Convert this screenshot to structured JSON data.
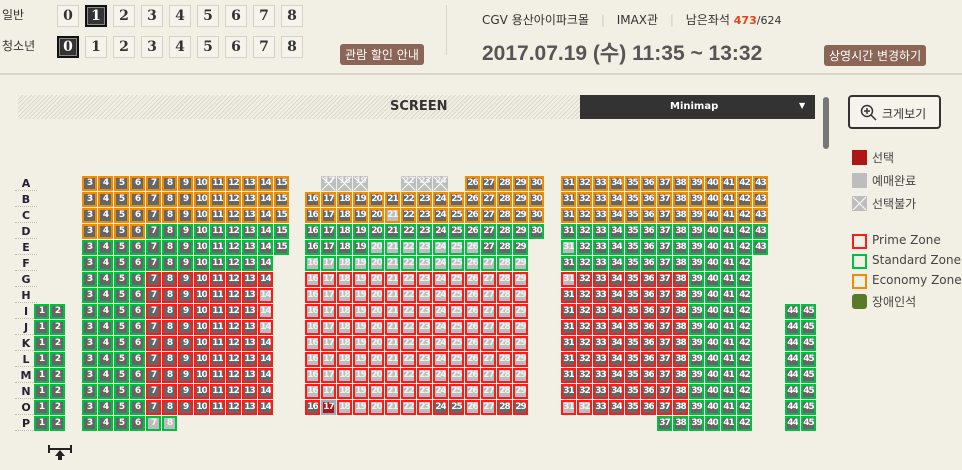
{
  "ticket": {
    "general_label": "일반",
    "youth_label": "청소년",
    "counts": [
      "0",
      "1",
      "2",
      "3",
      "4",
      "5",
      "6",
      "7",
      "8"
    ],
    "general_selected": 1,
    "youth_selected": 0,
    "discount_button": "관람 할인 안내"
  },
  "info": {
    "theater": "CGV 용산아이파크몰",
    "hall": "IMAX관",
    "remaining_label": "남은좌석",
    "remaining": "473",
    "total": "/624",
    "datetime": "2017.07.19 (수) 11:35 ~ 13:32",
    "change_time_button": "상영시간 변경하기"
  },
  "screen_label": "SCREEN",
  "minimap": {
    "label": "Minimap",
    "arrow": "▼"
  },
  "zoom_button": "크게보기",
  "legend": {
    "selected": "선택",
    "sold": "예매완료",
    "blocked": "선택불가",
    "prime": "Prime Zone",
    "standard": "Standard Zone",
    "economy": "Economy Zone",
    "disabled": "장애인석"
  },
  "colors": {
    "prime": "#ff1a1a",
    "standard": "#00c040",
    "economy": "#f08c00",
    "disabled": "#5a7a2a",
    "selected": "#b01515",
    "sold": "#bdbdbd",
    "available": "#666666"
  },
  "rows": [
    {
      "label": "A",
      "zones": [
        [
          3,
          15,
          "E"
        ],
        [
          17,
          19,
          "N"
        ],
        [
          22,
          24,
          "N"
        ],
        [
          26,
          43,
          "E"
        ]
      ],
      "blocked": [
        17,
        18,
        19,
        22,
        23,
        24
      ],
      "sold": [],
      "selected": []
    },
    {
      "label": "B",
      "zones": [
        [
          3,
          43,
          "E"
        ]
      ],
      "blocked": [],
      "sold": [],
      "selected": []
    },
    {
      "label": "C",
      "zones": [
        [
          3,
          43,
          "E"
        ]
      ],
      "blocked": [],
      "sold": [
        21
      ],
      "selected": []
    },
    {
      "label": "D",
      "zones": [
        [
          3,
          6,
          "E"
        ],
        [
          7,
          43,
          "S"
        ]
      ],
      "blocked": [],
      "sold": [],
      "selected": []
    },
    {
      "label": "E",
      "zones": [
        [
          3,
          29,
          "S"
        ],
        [
          31,
          43,
          "S"
        ]
      ],
      "blocked": [],
      "sold": [
        20,
        21,
        22,
        23,
        24,
        25,
        26,
        31
      ],
      "selected": []
    },
    {
      "label": "F",
      "zones": [
        [
          3,
          14,
          "S"
        ],
        [
          16,
          29,
          "S"
        ],
        [
          31,
          42,
          "S"
        ]
      ],
      "blocked": [],
      "sold": [
        16,
        17,
        18,
        19,
        20,
        21,
        22,
        23,
        24,
        25,
        26,
        27,
        28,
        29
      ],
      "selected": []
    },
    {
      "label": "G",
      "zones": [
        [
          3,
          6,
          "S"
        ],
        [
          7,
          14,
          "P"
        ],
        [
          16,
          29,
          "P"
        ],
        [
          31,
          38,
          "P"
        ],
        [
          39,
          42,
          "S"
        ]
      ],
      "blocked": [],
      "sold": [
        16,
        17,
        18,
        19,
        20,
        21,
        22,
        23,
        24,
        25,
        26,
        27,
        28,
        29,
        31
      ],
      "selected": []
    },
    {
      "label": "H",
      "zones": [
        [
          3,
          6,
          "S"
        ],
        [
          7,
          14,
          "P"
        ],
        [
          16,
          29,
          "P"
        ],
        [
          31,
          38,
          "P"
        ],
        [
          39,
          42,
          "S"
        ]
      ],
      "blocked": [],
      "sold": [
        14,
        16,
        17,
        18,
        19,
        20,
        21,
        22,
        23,
        24,
        25,
        26,
        27,
        28,
        29
      ],
      "selected": []
    },
    {
      "label": "I",
      "zones": [
        [
          1,
          6,
          "S"
        ],
        [
          7,
          14,
          "P"
        ],
        [
          16,
          29,
          "P"
        ],
        [
          31,
          38,
          "P"
        ],
        [
          39,
          42,
          "S"
        ],
        [
          44,
          45,
          "S"
        ]
      ],
      "blocked": [],
      "sold": [
        14,
        16,
        17,
        18,
        19,
        20,
        21,
        22,
        23,
        24,
        25,
        26,
        27,
        28,
        29
      ],
      "selected": []
    },
    {
      "label": "J",
      "zones": [
        [
          1,
          6,
          "S"
        ],
        [
          7,
          14,
          "P"
        ],
        [
          16,
          29,
          "P"
        ],
        [
          31,
          38,
          "P"
        ],
        [
          39,
          42,
          "S"
        ],
        [
          44,
          45,
          "S"
        ]
      ],
      "blocked": [],
      "sold": [
        14,
        16,
        17,
        18,
        19,
        20,
        21,
        22,
        23,
        24,
        25,
        26,
        27,
        28,
        29
      ],
      "selected": []
    },
    {
      "label": "K",
      "zones": [
        [
          1,
          6,
          "S"
        ],
        [
          7,
          14,
          "P"
        ],
        [
          16,
          29,
          "P"
        ],
        [
          31,
          38,
          "P"
        ],
        [
          39,
          42,
          "S"
        ],
        [
          44,
          45,
          "S"
        ]
      ],
      "blocked": [],
      "sold": [
        16,
        17,
        18,
        19,
        20,
        21,
        22,
        23,
        24,
        25,
        26,
        27,
        28,
        29
      ],
      "selected": []
    },
    {
      "label": "L",
      "zones": [
        [
          1,
          6,
          "S"
        ],
        [
          7,
          14,
          "P"
        ],
        [
          16,
          29,
          "P"
        ],
        [
          31,
          38,
          "P"
        ],
        [
          39,
          42,
          "S"
        ],
        [
          44,
          45,
          "S"
        ]
      ],
      "blocked": [],
      "sold": [
        16,
        17,
        18,
        19,
        20,
        21,
        22,
        23,
        24,
        25,
        26,
        27,
        28,
        29
      ],
      "selected": []
    },
    {
      "label": "M",
      "zones": [
        [
          1,
          6,
          "S"
        ],
        [
          7,
          14,
          "P"
        ],
        [
          16,
          29,
          "P"
        ],
        [
          31,
          38,
          "P"
        ],
        [
          39,
          42,
          "S"
        ],
        [
          44,
          45,
          "S"
        ]
      ],
      "blocked": [],
      "sold": [
        16,
        17,
        18,
        19,
        20,
        21,
        22,
        23,
        24,
        25,
        26,
        27,
        28,
        29
      ],
      "selected": []
    },
    {
      "label": "N",
      "zones": [
        [
          1,
          6,
          "S"
        ],
        [
          7,
          14,
          "P"
        ],
        [
          16,
          29,
          "P"
        ],
        [
          31,
          38,
          "P"
        ],
        [
          39,
          42,
          "S"
        ],
        [
          44,
          45,
          "S"
        ]
      ],
      "blocked": [],
      "sold": [
        16,
        17,
        18,
        19,
        20,
        21,
        22,
        23,
        24,
        25,
        26,
        27,
        28,
        29
      ],
      "selected": []
    },
    {
      "label": "O",
      "zones": [
        [
          1,
          6,
          "S"
        ],
        [
          7,
          14,
          "P"
        ],
        [
          16,
          29,
          "P"
        ],
        [
          31,
          38,
          "P"
        ],
        [
          39,
          42,
          "S"
        ],
        [
          44,
          45,
          "S"
        ]
      ],
      "blocked": [],
      "sold": [
        18,
        19,
        20,
        21,
        22,
        23,
        26,
        27,
        31,
        32
      ],
      "selected": [
        17
      ]
    },
    {
      "label": "P",
      "zones": [
        [
          1,
          8,
          "S"
        ],
        [
          37,
          42,
          "S"
        ],
        [
          44,
          45,
          "S"
        ]
      ],
      "blocked": [],
      "sold": [
        7,
        8
      ],
      "selected": []
    }
  ]
}
